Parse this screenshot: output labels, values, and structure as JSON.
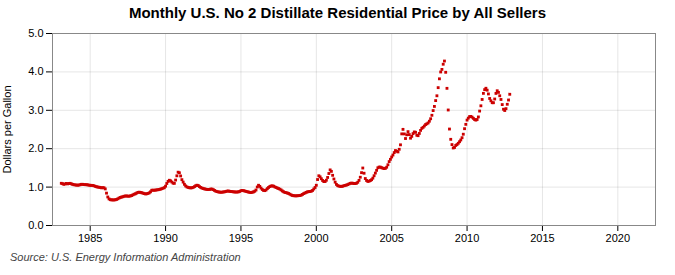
{
  "chart_data": {
    "type": "scatter",
    "title": "Monthly U.S. No 2 Distillate Residential Price by All Sellers",
    "ylabel": "Dollars per Gallon",
    "caption": "Source: U.S. Energy Information Administration",
    "color": "#cc0000",
    "marker": "square",
    "grid": true,
    "xlim": [
      1982.5,
      2022.5
    ],
    "ylim": [
      0.0,
      5.0
    ],
    "xticks": [
      1985,
      1990,
      1995,
      2000,
      2005,
      2010,
      2015,
      2020
    ],
    "yticks": [
      {
        "value": 0.0,
        "label": "0.0"
      },
      {
        "value": 1.0,
        "label": "1.0"
      },
      {
        "value": 2.0,
        "label": "2.0"
      },
      {
        "value": 3.0,
        "label": "3.0"
      },
      {
        "value": 4.0,
        "label": "4.0"
      },
      {
        "value": 5.0,
        "label": "5.0"
      }
    ],
    "x": [
      1983.083,
      1983.167,
      1983.25,
      1983.333,
      1983.417,
      1983.5,
      1983.583,
      1983.667,
      1983.75,
      1983.833,
      1983.917,
      1984.0,
      1984.083,
      1984.167,
      1984.25,
      1984.333,
      1984.417,
      1984.5,
      1984.583,
      1984.667,
      1984.75,
      1984.833,
      1984.917,
      1985.0,
      1985.083,
      1985.167,
      1985.25,
      1985.333,
      1985.417,
      1985.5,
      1985.583,
      1985.667,
      1985.75,
      1985.833,
      1985.917,
      1986.0,
      1986.083,
      1986.167,
      1986.25,
      1986.333,
      1986.417,
      1986.5,
      1986.583,
      1986.667,
      1986.75,
      1986.833,
      1986.917,
      1987.0,
      1987.083,
      1987.167,
      1987.25,
      1987.333,
      1987.417,
      1987.5,
      1987.583,
      1987.667,
      1987.75,
      1987.833,
      1987.917,
      1988.0,
      1988.083,
      1988.167,
      1988.25,
      1988.333,
      1988.417,
      1988.5,
      1988.583,
      1988.667,
      1988.75,
      1988.833,
      1988.917,
      1989.0,
      1989.083,
      1989.167,
      1989.25,
      1989.333,
      1989.417,
      1989.5,
      1989.583,
      1989.667,
      1989.75,
      1989.833,
      1989.917,
      1990.0,
      1990.083,
      1990.167,
      1990.25,
      1990.333,
      1990.417,
      1990.5,
      1990.583,
      1990.667,
      1990.75,
      1990.833,
      1990.917,
      1991.0,
      1991.083,
      1991.167,
      1991.25,
      1991.333,
      1991.417,
      1991.5,
      1991.583,
      1991.667,
      1991.75,
      1991.833,
      1991.917,
      1992.0,
      1992.083,
      1992.167,
      1992.25,
      1992.333,
      1992.417,
      1992.5,
      1992.583,
      1992.667,
      1992.75,
      1992.833,
      1992.917,
      1993.0,
      1993.083,
      1993.167,
      1993.25,
      1993.333,
      1993.417,
      1993.5,
      1993.583,
      1993.667,
      1993.75,
      1993.833,
      1993.917,
      1994.0,
      1994.083,
      1994.167,
      1994.25,
      1994.333,
      1994.417,
      1994.5,
      1994.583,
      1994.667,
      1994.75,
      1994.833,
      1994.917,
      1995.0,
      1995.083,
      1995.167,
      1995.25,
      1995.333,
      1995.417,
      1995.5,
      1995.583,
      1995.667,
      1995.75,
      1995.833,
      1995.917,
      1996.0,
      1996.083,
      1996.167,
      1996.25,
      1996.333,
      1996.417,
      1996.5,
      1996.583,
      1996.667,
      1996.75,
      1996.833,
      1996.917,
      1997.0,
      1997.083,
      1997.167,
      1997.25,
      1997.333,
      1997.417,
      1997.5,
      1997.583,
      1997.667,
      1997.75,
      1997.833,
      1997.917,
      1998.0,
      1998.083,
      1998.167,
      1998.25,
      1998.333,
      1998.417,
      1998.5,
      1998.583,
      1998.667,
      1998.75,
      1998.833,
      1998.917,
      1999.0,
      1999.083,
      1999.167,
      1999.25,
      1999.333,
      1999.417,
      1999.5,
      1999.583,
      1999.667,
      1999.75,
      1999.833,
      1999.917,
      2000.0,
      2000.083,
      2000.167,
      2000.25,
      2000.333,
      2000.417,
      2000.5,
      2000.583,
      2000.667,
      2000.75,
      2000.833,
      2000.917,
      2001.0,
      2001.083,
      2001.167,
      2001.25,
      2001.333,
      2001.417,
      2001.5,
      2001.583,
      2001.667,
      2001.75,
      2001.833,
      2001.917,
      2002.0,
      2002.083,
      2002.167,
      2002.25,
      2002.333,
      2002.417,
      2002.5,
      2002.583,
      2002.667,
      2002.75,
      2002.833,
      2002.917,
      2003.0,
      2003.083,
      2003.167,
      2003.25,
      2003.333,
      2003.417,
      2003.5,
      2003.583,
      2003.667,
      2003.75,
      2003.833,
      2003.917,
      2004.0,
      2004.083,
      2004.167,
      2004.25,
      2004.333,
      2004.417,
      2004.5,
      2004.583,
      2004.667,
      2004.75,
      2004.833,
      2004.917,
      2005.0,
      2005.083,
      2005.167,
      2005.25,
      2005.333,
      2005.417,
      2005.5,
      2005.583,
      2005.667,
      2005.75,
      2005.833,
      2005.917,
      2006.0,
      2006.083,
      2006.167,
      2006.25,
      2006.333,
      2006.417,
      2006.5,
      2006.583,
      2006.667,
      2006.75,
      2006.833,
      2006.917,
      2007.0,
      2007.083,
      2007.167,
      2007.25,
      2007.333,
      2007.417,
      2007.5,
      2007.583,
      2007.667,
      2007.75,
      2007.833,
      2007.917,
      2008.0,
      2008.083,
      2008.167,
      2008.25,
      2008.333,
      2008.417,
      2008.5,
      2008.583,
      2008.667,
      2008.75,
      2008.833,
      2008.917,
      2009.0,
      2009.083,
      2009.167,
      2009.25,
      2009.333,
      2009.417,
      2009.5,
      2009.583,
      2009.667,
      2009.75,
      2009.833,
      2009.917,
      2010.0,
      2010.083,
      2010.167,
      2010.25,
      2010.333,
      2010.417,
      2010.5,
      2010.583,
      2010.667,
      2010.75,
      2010.833,
      2010.917,
      2011.0,
      2011.083,
      2011.167,
      2011.25,
      2011.333,
      2011.417,
      2011.5,
      2011.583,
      2011.667,
      2011.75,
      2011.833,
      2011.917,
      2012.0,
      2012.083,
      2012.167,
      2012.25,
      2012.333,
      2012.417,
      2012.5,
      2012.583,
      2012.667,
      2012.75,
      2012.833
    ],
    "values": [
      1.099,
      1.089,
      1.072,
      1.082,
      1.095,
      1.084,
      1.093,
      1.098,
      1.085,
      1.072,
      1.062,
      1.057,
      1.053,
      1.05,
      1.053,
      1.062,
      1.072,
      1.072,
      1.065,
      1.063,
      1.063,
      1.058,
      1.051,
      1.047,
      1.045,
      1.042,
      1.035,
      1.02,
      1.01,
      1.001,
      0.997,
      0.991,
      0.981,
      0.985,
      0.982,
      0.953,
      0.843,
      0.743,
      0.693,
      0.672,
      0.668,
      0.666,
      0.665,
      0.67,
      0.68,
      0.695,
      0.715,
      0.73,
      0.742,
      0.748,
      0.762,
      0.768,
      0.769,
      0.764,
      0.764,
      0.77,
      0.78,
      0.798,
      0.815,
      0.826,
      0.845,
      0.862,
      0.868,
      0.862,
      0.853,
      0.843,
      0.831,
      0.822,
      0.826,
      0.835,
      0.85,
      0.877,
      0.918,
      0.921,
      0.917,
      0.922,
      0.928,
      0.931,
      0.938,
      0.948,
      0.958,
      0.971,
      0.985,
      1.024,
      1.094,
      1.148,
      1.178,
      1.162,
      1.132,
      1.102,
      1.098,
      1.183,
      1.294,
      1.388,
      1.373,
      1.29,
      1.194,
      1.131,
      1.073,
      1.03,
      1.005,
      0.992,
      0.984,
      0.979,
      0.983,
      0.993,
      1.012,
      1.036,
      1.049,
      1.041,
      1.013,
      0.99,
      0.974,
      0.963,
      0.953,
      0.946,
      0.94,
      0.938,
      0.94,
      0.95,
      0.948,
      0.934,
      0.912,
      0.893,
      0.882,
      0.875,
      0.869,
      0.866,
      0.868,
      0.873,
      0.878,
      0.886,
      0.896,
      0.898,
      0.89,
      0.885,
      0.882,
      0.877,
      0.873,
      0.872,
      0.872,
      0.876,
      0.888,
      0.906,
      0.912,
      0.908,
      0.898,
      0.889,
      0.88,
      0.872,
      0.863,
      0.859,
      0.866,
      0.875,
      0.893,
      0.924,
      1.002,
      1.048,
      1.018,
      0.974,
      0.938,
      0.913,
      0.908,
      0.926,
      0.96,
      0.991,
      1.015,
      1.029,
      1.032,
      1.024,
      1.005,
      0.99,
      0.975,
      0.961,
      0.946,
      0.925,
      0.899,
      0.878,
      0.861,
      0.855,
      0.845,
      0.833,
      0.814,
      0.796,
      0.783,
      0.776,
      0.773,
      0.772,
      0.775,
      0.778,
      0.782,
      0.791,
      0.81,
      0.832,
      0.847,
      0.863,
      0.877,
      0.882,
      0.887,
      0.893,
      0.913,
      0.951,
      0.99,
      1.048,
      1.197,
      1.295,
      1.267,
      1.218,
      1.172,
      1.143,
      1.145,
      1.179,
      1.251,
      1.354,
      1.448,
      1.41,
      1.307,
      1.211,
      1.129,
      1.071,
      1.038,
      1.026,
      1.02,
      1.017,
      1.024,
      1.036,
      1.045,
      1.053,
      1.065,
      1.082,
      1.098,
      1.103,
      1.1,
      1.093,
      1.093,
      1.101,
      1.126,
      1.175,
      1.257,
      1.376,
      1.497,
      1.361,
      1.223,
      1.173,
      1.148,
      1.155,
      1.17,
      1.193,
      1.233,
      1.296,
      1.365,
      1.436,
      1.503,
      1.522,
      1.52,
      1.504,
      1.493,
      1.483,
      1.489,
      1.518,
      1.582,
      1.664,
      1.723,
      1.784,
      1.835,
      1.899,
      1.952,
      1.932,
      1.916,
      1.985,
      2.101,
      2.386,
      2.504,
      2.385,
      2.265,
      2.362,
      2.444,
      2.368,
      2.274,
      2.321,
      2.393,
      2.436,
      2.427,
      2.351,
      2.339,
      2.397,
      2.477,
      2.531,
      2.556,
      2.591,
      2.629,
      2.648,
      2.671,
      2.716,
      2.78,
      2.87,
      2.993,
      3.101,
      3.253,
      3.378,
      3.59,
      3.82,
      3.998,
      4.065,
      4.2,
      4.283,
      3.99,
      3.572,
      3.008,
      2.512,
      2.244,
      2.107,
      2.019,
      2.032,
      2.084,
      2.108,
      2.141,
      2.182,
      2.227,
      2.286,
      2.377,
      2.521,
      2.634,
      2.745,
      2.796,
      2.836,
      2.84,
      2.822,
      2.791,
      2.76,
      2.744,
      2.76,
      2.827,
      2.98,
      3.117,
      3.282,
      3.441,
      3.538,
      3.574,
      3.524,
      3.426,
      3.308,
      3.248,
      3.198,
      3.197,
      3.294,
      3.44,
      3.509,
      3.467,
      3.378,
      3.282,
      3.149,
      3.028,
      2.995,
      3.043,
      3.157,
      3.268,
      3.417
    ]
  }
}
